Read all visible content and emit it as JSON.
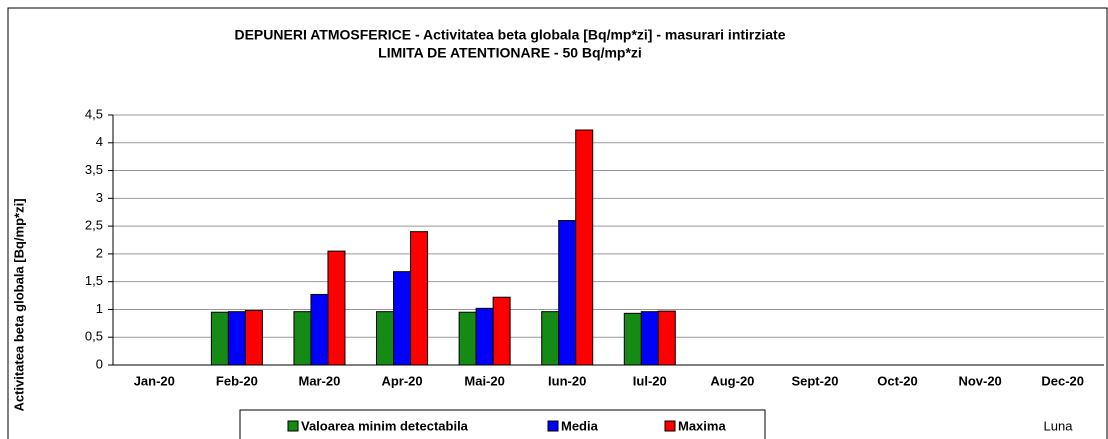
{
  "chart_data": {
    "type": "bar",
    "title": "DEPUNERI ATMOSFERICE - Activitatea beta globala [Bq/mp*zi] - masurari intirziate",
    "subtitle": "LIMITA DE ATENTIONARE - 50 Bq/mp*zi",
    "y_label": "Activitatea beta globala [Bq/mp*zi]",
    "x_label": "Luna",
    "categories": [
      "Jan-20",
      "Feb-20",
      "Mar-20",
      "Apr-20",
      "Mai-20",
      "Iun-20",
      "Iul-20",
      "Aug-20",
      "Sept-20",
      "Oct-20",
      "Nov-20",
      "Dec-20"
    ],
    "series": [
      {
        "name": "Valoarea minim detectabila",
        "color": "#158a15",
        "values": [
          null,
          0.95,
          0.96,
          0.96,
          0.95,
          0.96,
          0.93,
          null,
          null,
          null,
          null,
          null
        ]
      },
      {
        "name": "Media",
        "color": "#0000ff",
        "values": [
          null,
          0.96,
          1.27,
          1.68,
          1.02,
          2.6,
          0.96,
          null,
          null,
          null,
          null,
          null
        ]
      },
      {
        "name": "Maxima",
        "color": "#ff0000",
        "values": [
          null,
          0.98,
          2.05,
          2.4,
          1.22,
          4.23,
          0.97,
          null,
          null,
          null,
          null,
          null
        ]
      }
    ],
    "ylim": [
      0,
      4.5
    ],
    "yticks": [
      0,
      {
        "value": 0.5,
        "label": "0,5"
      },
      1,
      {
        "value": 1.5,
        "label": "1,5"
      },
      2,
      {
        "value": 2.5,
        "label": "2,5"
      },
      3,
      {
        "value": 3.5,
        "label": "3,5"
      },
      4,
      {
        "value": 4.5,
        "label": "4,5"
      }
    ],
    "grid": true
  }
}
